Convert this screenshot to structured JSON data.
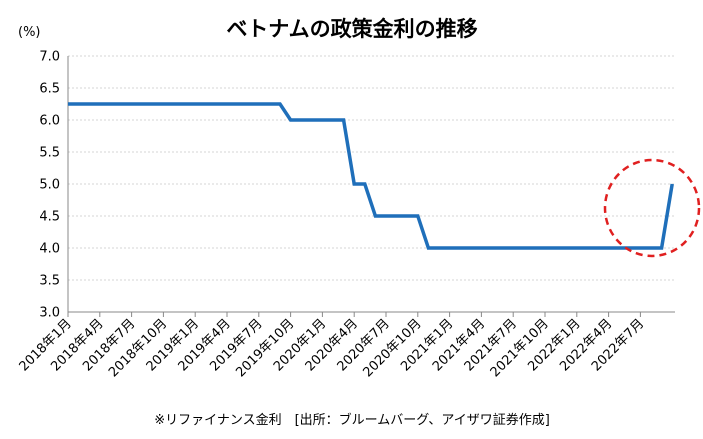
{
  "chart_data": {
    "type": "line",
    "title": "ベトナムの政策金利の推移",
    "unit_label": "(%)",
    "ylim": [
      3.0,
      7.0
    ],
    "yticks": [
      "7.0",
      "6.5",
      "6.0",
      "5.5",
      "5.0",
      "4.5",
      "4.0",
      "3.5",
      "3.0"
    ],
    "grid": true,
    "x_categories": [
      "2018年1月",
      "2018年4月",
      "2018年7月",
      "2018年10月",
      "2019年1月",
      "2019年4月",
      "2019年7月",
      "2019年10月",
      "2020年1月",
      "2020年4月",
      "2020年7月",
      "2020年10月",
      "2021年1月",
      "2021年4月",
      "2021年7月",
      "2021年10月",
      "2022年1月",
      "2022年4月",
      "2022年7月"
    ],
    "series": [
      {
        "color": "#1f6fba",
        "points": [
          [
            "2018-01",
            6.25
          ],
          [
            "2019-09",
            6.25
          ],
          [
            "2019-10",
            6.0
          ],
          [
            "2020-03",
            6.0
          ],
          [
            "2020-04",
            5.0
          ],
          [
            "2020-05",
            5.0
          ],
          [
            "2020-06",
            4.5
          ],
          [
            "2020-10",
            4.5
          ],
          [
            "2020-11",
            4.0
          ],
          [
            "2022-09",
            4.0
          ],
          [
            "2022-10",
            5.0
          ]
        ]
      }
    ],
    "highlight_circle_color": "#e02020",
    "footnote": "※リファイナンス金利　[出所：ブルームバーグ、アイザワ証券作成]"
  }
}
